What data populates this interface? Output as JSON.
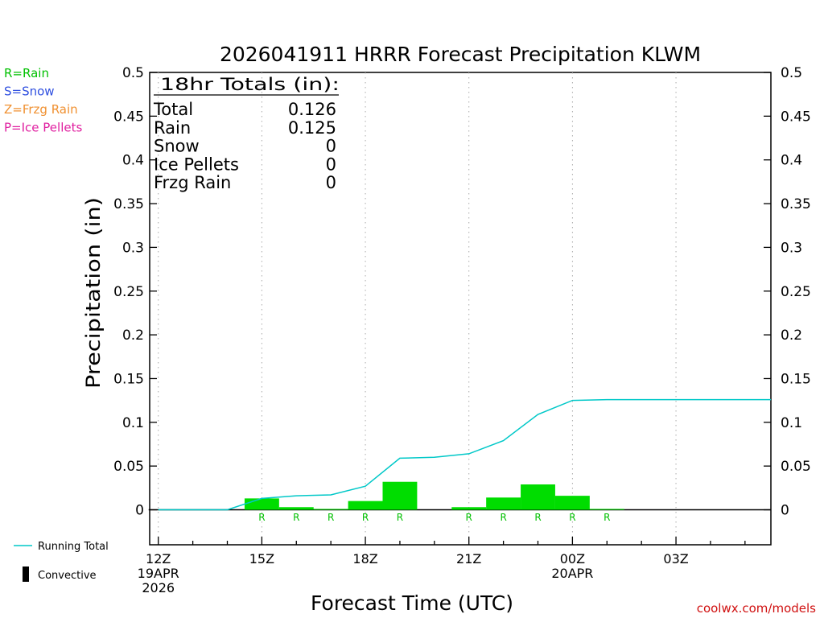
{
  "chart_data": {
    "type": "bar",
    "title": "2026041911 HRRR Forecast Precipitation KLWM",
    "ylabel": "Precipitation (in)",
    "xlabel": "Forecast Time (UTC)",
    "ylim": [
      -0.04,
      0.5
    ],
    "xlim": [
      11.75,
      29.75
    ],
    "y_ticks": [
      0,
      0.05,
      0.1,
      0.15,
      0.2,
      0.25,
      0.3,
      0.35,
      0.4,
      0.45,
      0.5
    ],
    "y_tick_labels": [
      "0",
      "0.05",
      "0.1",
      "0.15",
      "0.2",
      "0.25",
      "0.3",
      "0.35",
      "0.4",
      "0.45",
      "0.5"
    ],
    "x_ticks": [
      {
        "hour": 12,
        "lines": [
          "12Z",
          "19APR",
          "2026"
        ]
      },
      {
        "hour": 15,
        "lines": [
          "15Z"
        ]
      },
      {
        "hour": 18,
        "lines": [
          "18Z"
        ]
      },
      {
        "hour": 21,
        "lines": [
          "21Z"
        ]
      },
      {
        "hour": 24,
        "lines": [
          "00Z",
          "20APR"
        ]
      },
      {
        "hour": 27,
        "lines": [
          "03Z"
        ]
      }
    ],
    "grid": "vertical dotted at tick hours",
    "bars": {
      "hours": [
        15,
        16,
        17,
        18,
        19,
        20,
        21,
        22,
        23,
        24,
        25,
        26,
        27,
        28,
        29
      ],
      "values": [
        0.013,
        0.003,
        0.001,
        0.01,
        0.032,
        0.0,
        0.003,
        0.014,
        0.029,
        0.016,
        0.001,
        0.0,
        0.0,
        0.0,
        0.0
      ],
      "color": "#00dd00"
    },
    "running_total": {
      "name": "Running Total",
      "color": "#00c8c8",
      "hours": [
        12,
        13,
        14,
        15,
        16,
        17,
        18,
        19,
        20,
        21,
        22,
        23,
        24,
        25,
        26,
        27,
        28,
        29,
        29.75
      ],
      "values": [
        0,
        0,
        0,
        0.013,
        0.016,
        0.017,
        0.027,
        0.059,
        0.06,
        0.064,
        0.079,
        0.109,
        0.125,
        0.126,
        0.126,
        0.126,
        0.126,
        0.126,
        0.126
      ]
    },
    "type_markers": {
      "label": "R",
      "hours": [
        15,
        16,
        17,
        18,
        19,
        21,
        22,
        23,
        24,
        25
      ],
      "color": "#00c000"
    },
    "totals_box": {
      "heading": "18hr Totals (in):",
      "rows": [
        {
          "label": "Total",
          "value": "0.126"
        },
        {
          "label": "Rain",
          "value": "0.125"
        },
        {
          "label": "Snow",
          "value": "0"
        },
        {
          "label": "Ice Pellets",
          "value": "0"
        },
        {
          "label": "Frzg Rain",
          "value": "0"
        }
      ]
    },
    "type_key": [
      {
        "text": "R=Rain",
        "color": "#00c000"
      },
      {
        "text": "S=Snow",
        "color": "#3050e0"
      },
      {
        "text": "Z=Frzg Rain",
        "color": "#f09030"
      },
      {
        "text": "P=Ice Pellets",
        "color": "#e020a0"
      }
    ],
    "legend": {
      "placement": "bottom-left",
      "running_total_label": "Running Total",
      "convective_label": "Convective"
    },
    "credit": "coolwx.com/models"
  }
}
